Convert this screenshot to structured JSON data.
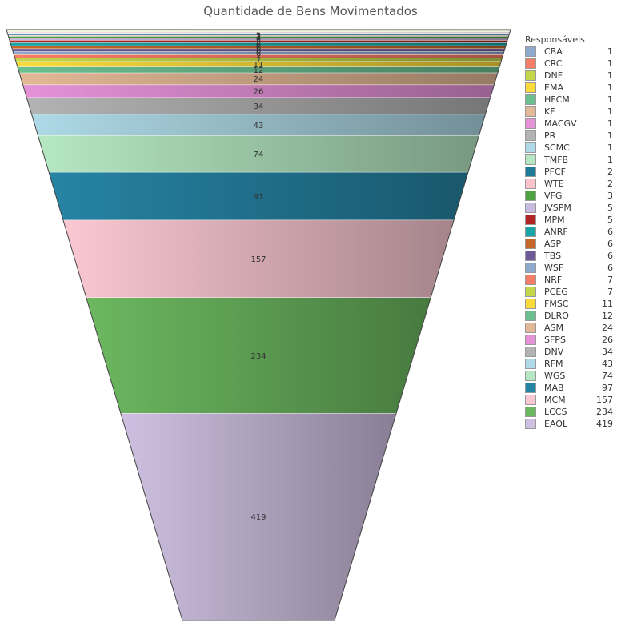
{
  "chart_data": {
    "type": "funnel",
    "title": "Quantidade de Bens Movimentados",
    "legend_title": "Responsáveis",
    "legend_position": "right",
    "items": [
      {
        "name": "CBA",
        "value": 1,
        "color": "#8DA9CC"
      },
      {
        "name": "CRC",
        "value": 1,
        "color": "#F77E66"
      },
      {
        "name": "DNF",
        "value": 1,
        "color": "#C4D64A"
      },
      {
        "name": "EMA",
        "value": 1,
        "color": "#FBDB3C"
      },
      {
        "name": "HFCM",
        "value": 1,
        "color": "#6BBF91"
      },
      {
        "name": "KF",
        "value": 1,
        "color": "#E3B896"
      },
      {
        "name": "MACGV",
        "value": 1,
        "color": "#E592D8"
      },
      {
        "name": "PR",
        "value": 1,
        "color": "#B3B3B3"
      },
      {
        "name": "SCMC",
        "value": 1,
        "color": "#AED9E6"
      },
      {
        "name": "TMFB",
        "value": 1,
        "color": "#B5E8C2"
      },
      {
        "name": "PFCF",
        "value": 2,
        "color": "#1E7A96"
      },
      {
        "name": "WTE",
        "value": 2,
        "color": "#FBC3CB"
      },
      {
        "name": "VFG",
        "value": 3,
        "color": "#4DA33F"
      },
      {
        "name": "JVSPM",
        "value": 5,
        "color": "#C9BADF"
      },
      {
        "name": "MPM",
        "value": 5,
        "color": "#B22423"
      },
      {
        "name": "ANRF",
        "value": 6,
        "color": "#1AA6A8"
      },
      {
        "name": "ASP",
        "value": 6,
        "color": "#C5672A"
      },
      {
        "name": "TBS",
        "value": 6,
        "color": "#6E5A96"
      },
      {
        "name": "WSF",
        "value": 6,
        "color": "#8DA9CC"
      },
      {
        "name": "NRF",
        "value": 7,
        "color": "#F77E66"
      },
      {
        "name": "PCEG",
        "value": 7,
        "color": "#C4D64A"
      },
      {
        "name": "FMSC",
        "value": 11,
        "color": "#FBDB3C"
      },
      {
        "name": "DLRO",
        "value": 12,
        "color": "#6BBF91"
      },
      {
        "name": "ASM",
        "value": 24,
        "color": "#E3B896"
      },
      {
        "name": "SFPS",
        "value": 26,
        "color": "#E592D8"
      },
      {
        "name": "DNV",
        "value": 34,
        "color": "#B3B3B3"
      },
      {
        "name": "RFM",
        "value": 43,
        "color": "#AED9E6"
      },
      {
        "name": "WGS",
        "value": 74,
        "color": "#B5E8C2"
      },
      {
        "name": "MAB",
        "value": 97,
        "color": "#2684A4"
      },
      {
        "name": "MCM",
        "value": 157,
        "color": "#FBC8D2"
      },
      {
        "name": "LCCS",
        "value": 234,
        "color": "#6CB860"
      },
      {
        "name": "EAOL",
        "value": 419,
        "color": "#CFC0E1"
      }
    ]
  }
}
